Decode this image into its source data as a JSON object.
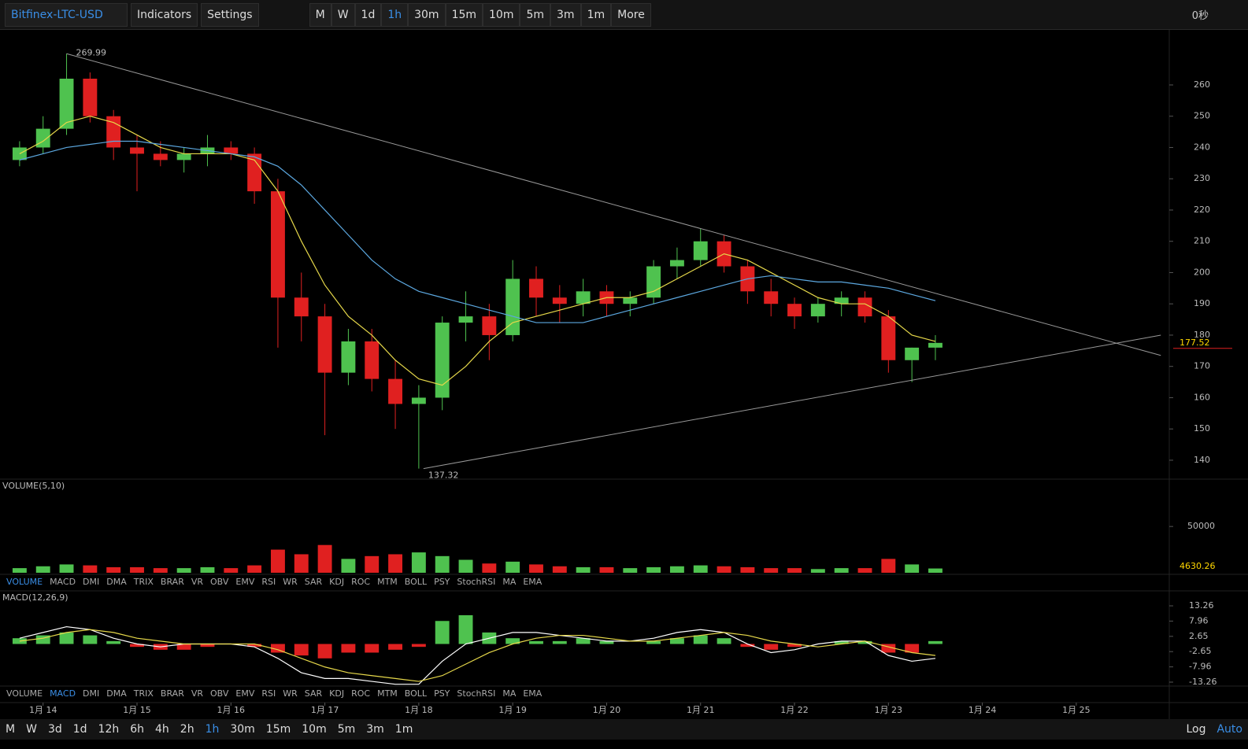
{
  "toolbar": {
    "symbol": "Bitfinex-LTC-USD",
    "menus": [
      "Indicators",
      "Settings"
    ],
    "intervals": [
      {
        "label": "M",
        "active": false
      },
      {
        "label": "W",
        "active": false
      },
      {
        "label": "1d",
        "active": false
      },
      {
        "label": "1h",
        "active": true
      },
      {
        "label": "30m",
        "active": false
      },
      {
        "label": "15m",
        "active": false
      },
      {
        "label": "10m",
        "active": false
      },
      {
        "label": "5m",
        "active": false
      },
      {
        "label": "3m",
        "active": false
      },
      {
        "label": "1m",
        "active": false
      },
      {
        "label": "More",
        "active": false
      }
    ],
    "clock": "0秒"
  },
  "chart_data": [
    {
      "type": "candlestick",
      "x": [
        13.75,
        14,
        14.25,
        14.5,
        14.75,
        15,
        15.25,
        15.5,
        15.75,
        16,
        16.25,
        16.5,
        16.75,
        17,
        17.25,
        17.5,
        17.75,
        18,
        18.25,
        18.5,
        18.75,
        19,
        19.25,
        19.5,
        19.75,
        20,
        20.25,
        20.5,
        20.75,
        21,
        21.25,
        21.5,
        21.75,
        22,
        22.25,
        22.5,
        22.75,
        23,
        23.25,
        23.5
      ],
      "open": [
        236,
        240,
        246,
        262,
        250,
        240,
        238,
        236,
        238,
        240,
        238,
        226,
        192,
        186,
        168,
        178,
        166,
        158,
        160,
        184,
        186,
        180,
        198,
        192,
        190,
        194,
        190,
        192,
        202,
        204,
        210,
        202,
        194,
        190,
        186,
        190,
        192,
        186,
        172,
        176
      ],
      "high": [
        242,
        250,
        269.99,
        264,
        252,
        244,
        242,
        240,
        244,
        242,
        240,
        230,
        200,
        190,
        182,
        182,
        172,
        164,
        186,
        194,
        190,
        204,
        202,
        196,
        198,
        196,
        194,
        204,
        208,
        214,
        212,
        204,
        198,
        192,
        192,
        194,
        194,
        188,
        176,
        180
      ],
      "low": [
        234,
        238,
        244,
        248,
        236,
        226,
        234,
        232,
        234,
        236,
        222,
        176,
        178,
        148,
        164,
        162,
        150,
        137.32,
        156,
        178,
        172,
        178,
        186,
        184,
        186,
        186,
        186,
        190,
        198,
        202,
        200,
        190,
        186,
        182,
        184,
        186,
        184,
        168,
        165,
        172
      ],
      "close": [
        240,
        246,
        262,
        250,
        240,
        238,
        236,
        238,
        240,
        238,
        226,
        192,
        186,
        168,
        178,
        166,
        158,
        160,
        184,
        186,
        180,
        198,
        192,
        190,
        194,
        190,
        192,
        202,
        204,
        210,
        202,
        194,
        190,
        186,
        190,
        192,
        186,
        172,
        176,
        177.52
      ],
      "series": [
        {
          "color": "#e6d84a",
          "values": [
            238,
            242,
            248,
            250,
            248,
            244,
            240,
            238,
            238,
            238,
            236,
            226,
            210,
            196,
            186,
            180,
            172,
            166,
            164,
            170,
            178,
            184,
            186,
            188,
            190,
            192,
            192,
            194,
            198,
            202,
            206,
            204,
            200,
            196,
            192,
            190,
            190,
            186,
            180,
            178
          ]
        },
        {
          "color": "#5ca8e0",
          "values": [
            236,
            238,
            240,
            241,
            242,
            242,
            241,
            240,
            239,
            238,
            237,
            234,
            228,
            220,
            212,
            204,
            198,
            194,
            192,
            190,
            188,
            186,
            184,
            184,
            184,
            186,
            188,
            190,
            192,
            194,
            196,
            198,
            199,
            198,
            197,
            197,
            196,
            195,
            193,
            191
          ]
        }
      ],
      "trendlines": [
        {
          "x": [
            14.25,
            25.9
          ],
          "y": [
            269.99,
            173.5
          ]
        },
        {
          "x": [
            18.05,
            25.9
          ],
          "y": [
            137.32,
            180
          ]
        }
      ],
      "xlim": [
        13.6,
        25.99
      ],
      "ylim": [
        134.2,
        277.1
      ],
      "yticks": [
        140,
        150,
        160,
        170,
        180,
        190,
        200,
        210,
        220,
        230,
        240,
        250,
        260
      ],
      "xticks": [
        {
          "value": 14,
          "label": "1月 14"
        },
        {
          "value": 15,
          "label": "1月 15"
        },
        {
          "value": 16,
          "label": "1月 16"
        },
        {
          "value": 17,
          "label": "1月 17"
        },
        {
          "value": 18,
          "label": "1月 18"
        },
        {
          "value": 19,
          "label": "1月 19"
        },
        {
          "value": 20,
          "label": "1月 20"
        },
        {
          "value": 21,
          "label": "1月 21"
        },
        {
          "value": 22,
          "label": "1月 22"
        },
        {
          "value": 23,
          "label": "1月 23"
        },
        {
          "value": 24,
          "label": "1月 24"
        },
        {
          "value": 25,
          "label": "1月 25"
        }
      ]
    },
    {
      "type": "bar",
      "title": "VOLUME(5,10)",
      "values": [
        5000,
        7000,
        9000,
        8000,
        6000,
        6000,
        5000,
        5000,
        6000,
        5000,
        8000,
        25000,
        20000,
        30000,
        15000,
        18000,
        20000,
        22000,
        18000,
        14000,
        10000,
        12000,
        9000,
        7000,
        6000,
        6000,
        5000,
        6000,
        7000,
        8000,
        7000,
        6000,
        5000,
        5000,
        4000,
        5000,
        5000,
        15000,
        9000,
        4630.26
      ],
      "ylim": [
        0,
        85000
      ],
      "yticks": [
        50000
      ]
    },
    {
      "type": "macd",
      "title": "MACD(12,26,9)",
      "histogram": [
        2,
        3,
        4,
        3,
        1,
        -1,
        -2,
        -2,
        -1,
        0,
        -1,
        -3,
        -4,
        -5,
        -3,
        -3,
        -2,
        -1,
        8,
        10,
        4,
        2,
        1,
        1,
        2,
        1,
        0,
        1,
        2,
        3,
        2,
        -1,
        -2,
        -1,
        0,
        1,
        1,
        -3,
        -3,
        1
      ],
      "series": [
        {
          "color": "#ffffff",
          "values": [
            2,
            4,
            6,
            5,
            2,
            0,
            -1,
            0,
            0,
            0,
            -1,
            -5,
            -10,
            -12,
            -12,
            -13,
            -14,
            -14,
            -6,
            0,
            2,
            4,
            4,
            3,
            2,
            1,
            1,
            2,
            4,
            5,
            4,
            0,
            -3,
            -2,
            0,
            1,
            1,
            -4,
            -6,
            -5
          ]
        },
        {
          "color": "#e6d84a",
          "values": [
            1,
            2,
            4,
            5,
            4,
            2,
            1,
            0,
            0,
            0,
            0,
            -2,
            -5,
            -8,
            -10,
            -11,
            -12,
            -13,
            -11,
            -7,
            -3,
            0,
            2,
            3,
            3,
            2,
            1,
            1,
            2,
            3,
            4,
            3,
            1,
            0,
            -1,
            0,
            1,
            -1,
            -3,
            -4
          ]
        }
      ],
      "ylim": [
        -14.9,
        16.0
      ],
      "yticks": [
        -13.26,
        -7.96,
        -2.65,
        2.65,
        7.96,
        13.26
      ]
    }
  ],
  "volume_tabs": [
    {
      "label": "VOLUME",
      "active": true
    },
    {
      "label": "MACD",
      "active": false
    },
    {
      "label": "DMI",
      "active": false
    },
    {
      "label": "DMA",
      "active": false
    },
    {
      "label": "TRIX",
      "active": false
    },
    {
      "label": "BRAR",
      "active": false
    },
    {
      "label": "VR",
      "active": false
    },
    {
      "label": "OBV",
      "active": false
    },
    {
      "label": "EMV",
      "active": false
    },
    {
      "label": "RSI",
      "active": false
    },
    {
      "label": "WR",
      "active": false
    },
    {
      "label": "SAR",
      "active": false
    },
    {
      "label": "KDJ",
      "active": false
    },
    {
      "label": "ROC",
      "active": false
    },
    {
      "label": "MTM",
      "active": false
    },
    {
      "label": "BOLL",
      "active": false
    },
    {
      "label": "PSY",
      "active": false
    },
    {
      "label": "StochRSI",
      "active": false
    },
    {
      "label": "MA",
      "active": false
    },
    {
      "label": "EMA",
      "active": false
    }
  ],
  "macd_tabs": [
    {
      "label": "VOLUME",
      "active": false
    },
    {
      "label": "MACD",
      "active": true
    },
    {
      "label": "DMI",
      "active": false
    },
    {
      "label": "DMA",
      "active": false
    },
    {
      "label": "TRIX",
      "active": false
    },
    {
      "label": "BRAR",
      "active": false
    },
    {
      "label": "VR",
      "active": false
    },
    {
      "label": "OBV",
      "active": false
    },
    {
      "label": "EMV",
      "active": false
    },
    {
      "label": "RSI",
      "active": false
    },
    {
      "label": "WR",
      "active": false
    },
    {
      "label": "SAR",
      "active": false
    },
    {
      "label": "KDJ",
      "active": false
    },
    {
      "label": "ROC",
      "active": false
    },
    {
      "label": "MTM",
      "active": false
    },
    {
      "label": "BOLL",
      "active": false
    },
    {
      "label": "PSY",
      "active": false
    },
    {
      "label": "StochRSI",
      "active": false
    },
    {
      "label": "MA",
      "active": false
    },
    {
      "label": "EMA",
      "active": false
    }
  ],
  "bottom_bar": {
    "intervals": [
      {
        "label": "M",
        "active": false
      },
      {
        "label": "W",
        "active": false
      },
      {
        "label": "3d",
        "active": false
      },
      {
        "label": "1d",
        "active": false
      },
      {
        "label": "12h",
        "active": false
      },
      {
        "label": "6h",
        "active": false
      },
      {
        "label": "4h",
        "active": false
      },
      {
        "label": "2h",
        "active": false
      },
      {
        "label": "1h",
        "active": true
      },
      {
        "label": "30m",
        "active": false
      },
      {
        "label": "15m",
        "active": false
      },
      {
        "label": "10m",
        "active": false
      },
      {
        "label": "5m",
        "active": false
      },
      {
        "label": "3m",
        "active": false
      },
      {
        "label": "1m",
        "active": false
      }
    ],
    "scale": [
      "Log",
      "Auto"
    ]
  }
}
